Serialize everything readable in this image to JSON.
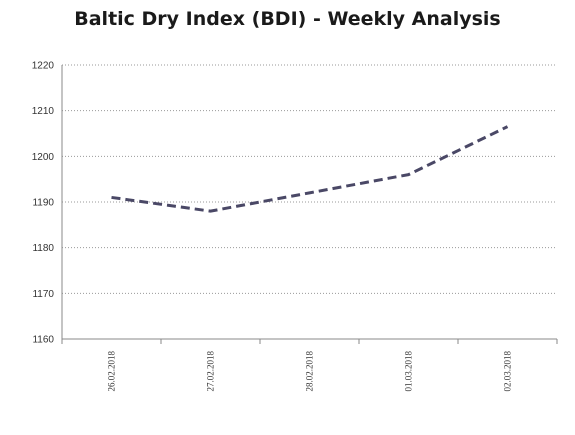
{
  "chart_data": {
    "type": "line",
    "title": "Baltic Dry Index (BDI) - Weekly Analysis",
    "categories": [
      "26.02.2018",
      "27.02.2018",
      "28.02.2018",
      "01.03.2018",
      "02.03.2018"
    ],
    "series": [
      {
        "values": [
          1191,
          1188,
          1192,
          1196,
          1206.5
        ]
      }
    ],
    "xlabel": "",
    "ylabel": "",
    "ylim": [
      1160,
      1220
    ],
    "yticks": [
      1160,
      1170,
      1180,
      1190,
      1200,
      1210,
      1220
    ],
    "grid": "horizontal dotted",
    "line_style": "dashed",
    "colors": {
      "line": "#4a4866",
      "grid": "#9a9a9a",
      "axis": "#888888"
    }
  }
}
